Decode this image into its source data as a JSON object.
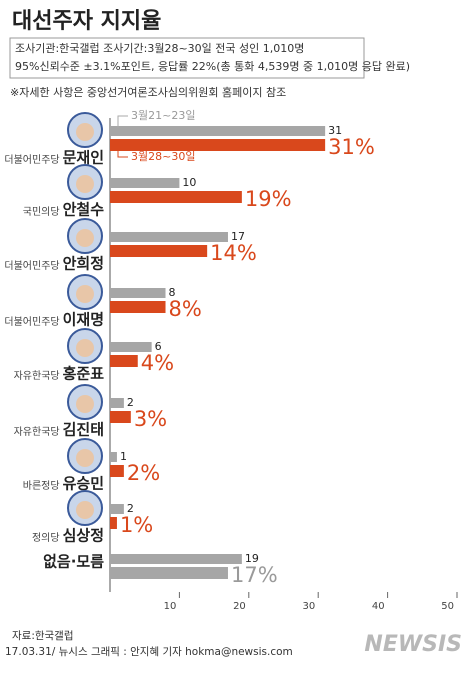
{
  "chart_data": {
    "type": "hbar",
    "title": "대선주자 지지율",
    "subtitle": [
      "조사기관:한국갤럽 조사기간:3월28~30일 전국 성인 1,010명",
      "95%신뢰수준 ±3.1%포인트, 응답률 22%(총 통화 4,539명 중 1,010명 응답 완료)"
    ],
    "note": "※자세한 사항은 중앙선거여론조사심의위원회 홈페이지 참조",
    "categories": [
      "문재인",
      "안철수",
      "안희정",
      "이재명",
      "홍준표",
      "김진태",
      "유승민",
      "심상정",
      "없음·모름"
    ],
    "parties": [
      "더불어민주당",
      "국민의당",
      "더불어민주당",
      "더불어민주당",
      "자유한국당",
      "자유한국당",
      "바른정당",
      "정의당",
      null
    ],
    "series": [
      {
        "name": "3월21~23일",
        "color": "#a6a6a6",
        "values": [
          31,
          10,
          17,
          8,
          6,
          2,
          1,
          2,
          19
        ]
      },
      {
        "name": "3월28~30일",
        "color": "#d9481c",
        "values": [
          31,
          19,
          14,
          8,
          4,
          3,
          2,
          1,
          17
        ],
        "value_labels": [
          "31%",
          "19%",
          "14%",
          "8%",
          "4%",
          "3%",
          "2%",
          "1%",
          "17%"
        ]
      }
    ],
    "xlim": [
      0,
      50
    ],
    "xticks": [
      10,
      20,
      30,
      40,
      50
    ],
    "source": "자료:한국갤럽",
    "credit": "17.03.31/ 뉴시스 그래픽 : 안지혜 기자 hokma@newsis.com",
    "logo": "NEWSIS"
  }
}
